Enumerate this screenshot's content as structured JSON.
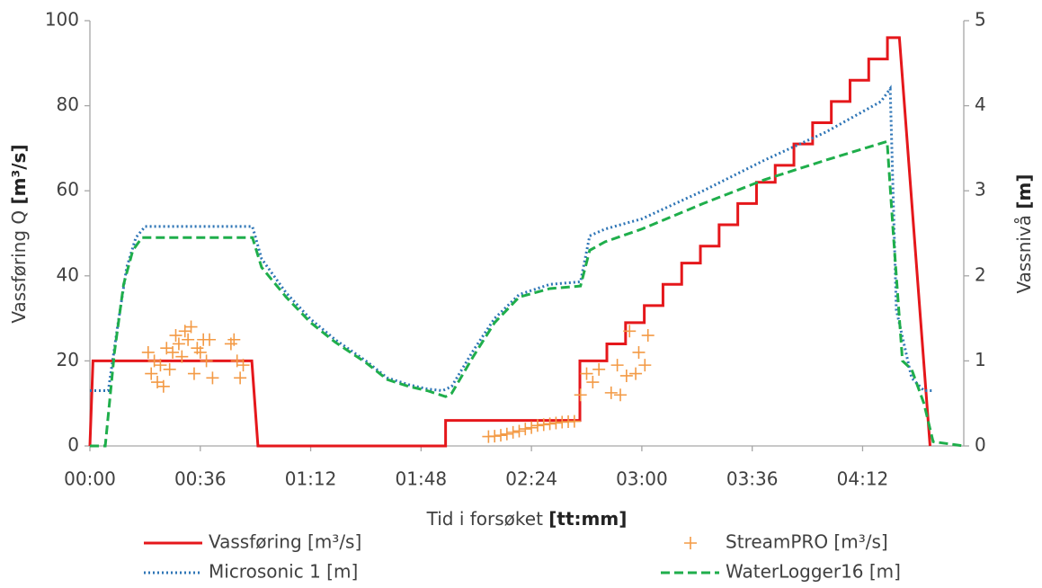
{
  "chart_data": {
    "type": "line",
    "y_label": "Vassføring Q",
    "y_label_unit": "[m³/s]",
    "y2_label": "Vassnivå",
    "y2_label_unit": "[m]",
    "x_label": "Tid i forsøket",
    "x_label_unit": "[tt:mm]",
    "xlim": [
      0,
      285
    ],
    "xticks": [
      {
        "value": 0,
        "label": "00:00"
      },
      {
        "value": 36,
        "label": "00:36"
      },
      {
        "value": 72,
        "label": "01:12"
      },
      {
        "value": 108,
        "label": "01:48"
      },
      {
        "value": 144,
        "label": "02:24"
      },
      {
        "value": 180,
        "label": "03:00"
      },
      {
        "value": 216,
        "label": "03:36"
      },
      {
        "value": 252,
        "label": "04:12"
      }
    ],
    "ylim": [
      0,
      100
    ],
    "yticks": [
      0,
      20,
      40,
      60,
      80,
      100
    ],
    "y2lim": [
      0,
      5
    ],
    "y2ticks": [
      0,
      1,
      2,
      3,
      4,
      5
    ],
    "grid": false,
    "legend": "bottom",
    "series": [
      {
        "name": "Vassføring [m³/s]",
        "color": "#e5171b",
        "style": "solid",
        "axis": "y",
        "x": [
          0,
          1,
          52.8,
          54.8,
          116,
          116,
          159.8,
          159.8,
          168.6,
          168.6,
          174.7,
          174.7,
          180.8,
          180.8,
          186.9,
          186.9,
          193.0,
          193.0,
          199.1,
          199.1,
          205.2,
          205.2,
          211.3,
          211.3,
          217.4,
          217.4,
          223.5,
          223.5,
          229.6,
          229.6,
          235.7,
          235.7,
          241.8,
          241.8,
          247.9,
          247.9,
          254.0,
          254.0,
          260.1,
          260.1,
          264,
          274
        ],
        "values": [
          0,
          20,
          20,
          0,
          0,
          6,
          6,
          20,
          20,
          24,
          24,
          29,
          29,
          33,
          33,
          38,
          38,
          43,
          43,
          47,
          47,
          52,
          52,
          57,
          57,
          62,
          62,
          66,
          66,
          71,
          71,
          76,
          76,
          81,
          81,
          86,
          86,
          91,
          91,
          96,
          96,
          0
        ]
      },
      {
        "name": "StreamPRO [m³/s]",
        "color": "#f39a45",
        "style": "plus",
        "axis": "y",
        "x": [
          19,
          20,
          21,
          22,
          23,
          24,
          25,
          26,
          27,
          28,
          29,
          30,
          31,
          32,
          33,
          34,
          35,
          36,
          37,
          38,
          39,
          40,
          46,
          47,
          48,
          49,
          50,
          130,
          132,
          134,
          136,
          138,
          140,
          142,
          144,
          146,
          148,
          150,
          152,
          154,
          156,
          158,
          160,
          162,
          164,
          166,
          170,
          172,
          173,
          175,
          176,
          178,
          179,
          181,
          182
        ],
        "values": [
          22,
          17,
          20,
          15,
          19,
          14,
          23,
          18,
          22,
          26,
          24,
          21,
          27,
          25,
          28,
          17,
          23,
          22,
          25,
          20,
          25,
          16,
          24,
          25,
          20,
          16,
          19,
          2.2,
          2.3,
          2.5,
          2.8,
          3.2,
          3.5,
          4,
          4.3,
          4.8,
          5,
          5.2,
          5.4,
          5.6,
          5.7,
          5.8,
          12,
          17,
          15,
          18,
          12.5,
          19,
          12,
          16.5,
          27,
          17,
          22,
          19,
          26
        ]
      },
      {
        "name": "Microsonic 1 [m]",
        "color": "#2e75b6",
        "style": "dotted",
        "axis": "y2",
        "x": [
          0,
          6,
          9,
          12,
          15,
          18,
          53,
          56,
          64,
          72,
          80,
          90,
          97,
          104,
          110,
          115,
          118,
          125,
          132,
          140,
          150,
          160,
          163,
          168,
          180,
          200,
          220,
          240,
          258,
          261,
          263,
          268,
          272,
          275
        ],
        "values": [
          0.65,
          0.65,
          1.4,
          2.1,
          2.45,
          2.58,
          2.58,
          2.2,
          1.8,
          1.49,
          1.25,
          1.0,
          0.8,
          0.72,
          0.67,
          0.65,
          0.7,
          1.12,
          1.5,
          1.78,
          1.9,
          1.93,
          2.47,
          2.55,
          2.67,
          3.0,
          3.36,
          3.69,
          4.05,
          4.2,
          1.6,
          0.8,
          0.65,
          0.65
        ]
      },
      {
        "name": "WaterLogger16 [m]",
        "color": "#1fae4b",
        "style": "dashed",
        "axis": "y2",
        "x": [
          0,
          5,
          8,
          11,
          14,
          17,
          53,
          56,
          64,
          72,
          80,
          90,
          97,
          104,
          110,
          116,
          118,
          125,
          132,
          140,
          150,
          160,
          163,
          168,
          180,
          200,
          220,
          240,
          260,
          262,
          265,
          268,
          272,
          275,
          285
        ],
        "values": [
          0,
          0,
          1.1,
          1.9,
          2.3,
          2.45,
          2.45,
          2.1,
          1.75,
          1.45,
          1.22,
          0.98,
          0.78,
          0.7,
          0.65,
          0.58,
          0.62,
          1.05,
          1.45,
          1.75,
          1.85,
          1.88,
          2.3,
          2.4,
          2.55,
          2.85,
          3.13,
          3.36,
          3.58,
          2.5,
          1.0,
          0.9,
          0.5,
          0.05,
          0
        ]
      }
    ]
  }
}
